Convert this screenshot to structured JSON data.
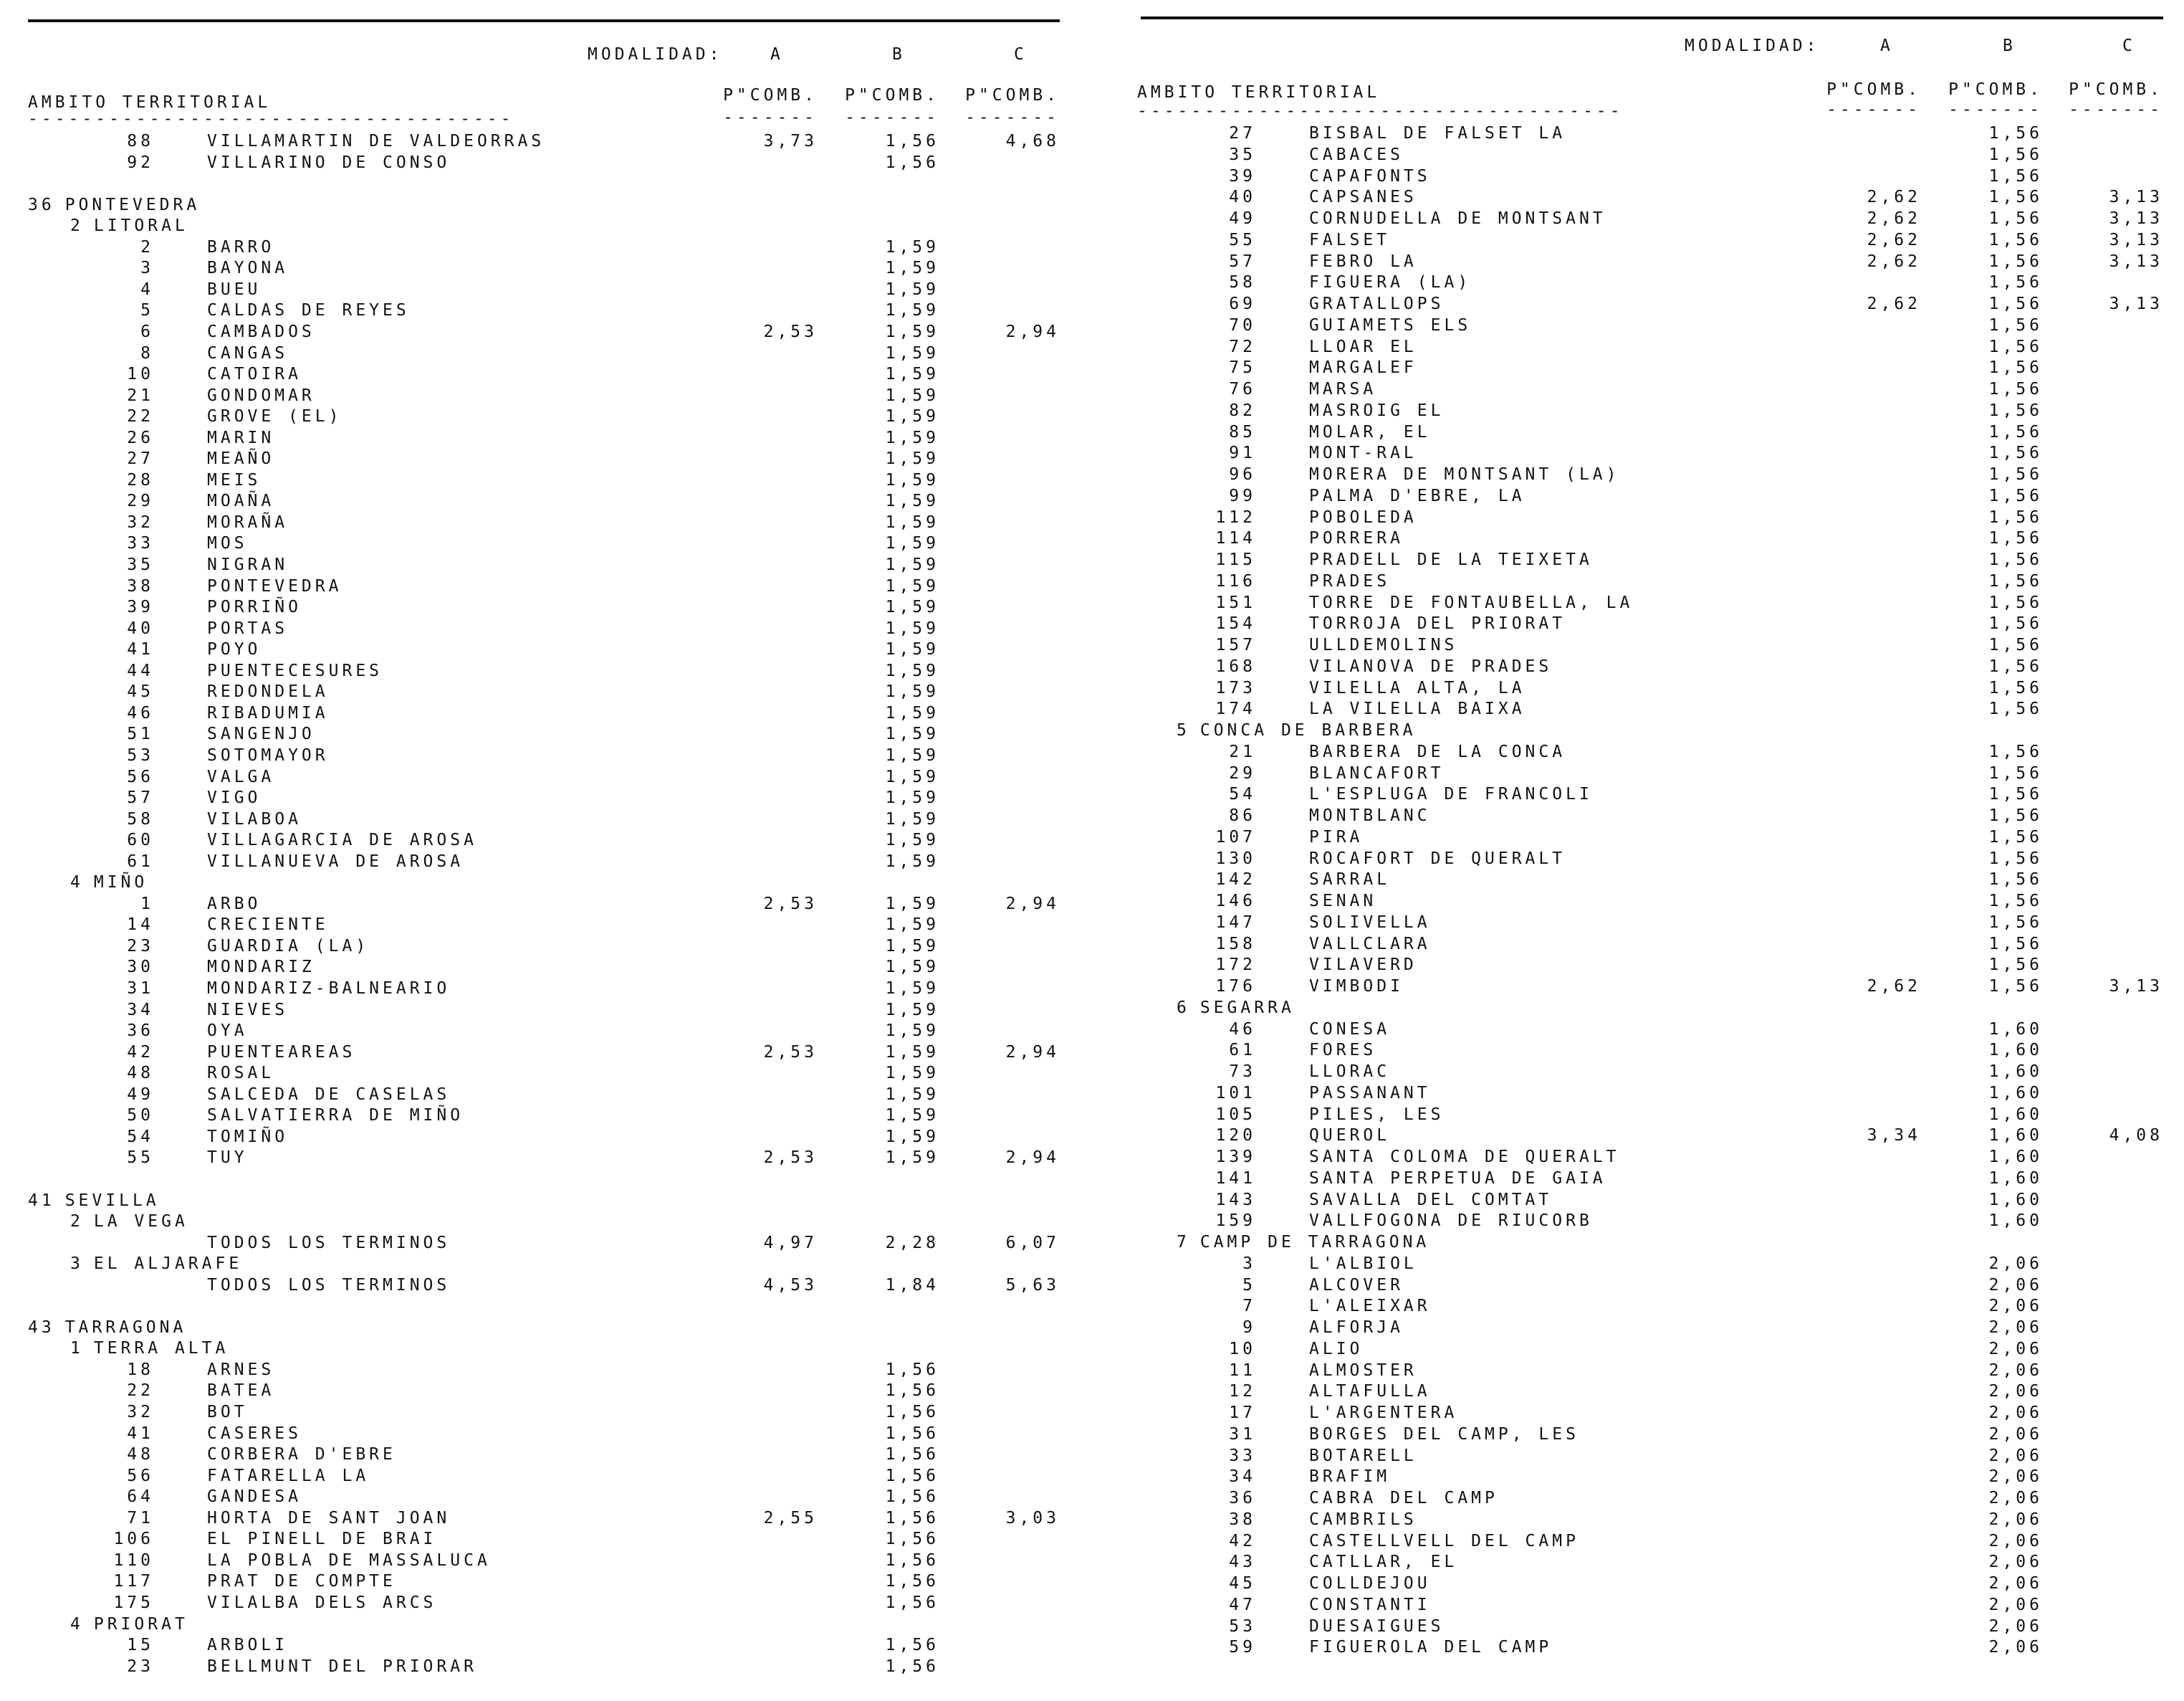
{
  "header": {
    "modalidad_label": "MODALIDAD:",
    "modalidades": [
      "A",
      "B",
      "C"
    ],
    "ambito_label": "AMBITO TERRITORIAL",
    "ambito_underline": "------------------------------------",
    "column_label": "P\"COMB.",
    "column_underline": "-------"
  },
  "left_column": {
    "rows": [
      {
        "type": "item",
        "num": "88",
        "name": "VILLAMARTIN DE VALDEORRAS",
        "a": "3,73",
        "b": "1,56",
        "c": "4,68"
      },
      {
        "type": "item",
        "num": "92",
        "name": "VILLARINO DE CONSO",
        "b": "1,56"
      },
      {
        "type": "blank"
      },
      {
        "type": "province",
        "code": "36",
        "name": "PONTEVEDRA"
      },
      {
        "type": "region",
        "code": "2",
        "name": "LITORAL"
      },
      {
        "type": "item",
        "num": "2",
        "name": "BARRO",
        "b": "1,59"
      },
      {
        "type": "item",
        "num": "3",
        "name": "BAYONA",
        "b": "1,59"
      },
      {
        "type": "item",
        "num": "4",
        "name": "BUEU",
        "b": "1,59"
      },
      {
        "type": "item",
        "num": "5",
        "name": "CALDAS DE REYES",
        "b": "1,59"
      },
      {
        "type": "item",
        "num": "6",
        "name": "CAMBADOS",
        "a": "2,53",
        "b": "1,59",
        "c": "2,94"
      },
      {
        "type": "item",
        "num": "8",
        "name": "CANGAS",
        "b": "1,59"
      },
      {
        "type": "item",
        "num": "10",
        "name": "CATOIRA",
        "b": "1,59"
      },
      {
        "type": "item",
        "num": "21",
        "name": "GONDOMAR",
        "b": "1,59"
      },
      {
        "type": "item",
        "num": "22",
        "name": "GROVE (EL)",
        "b": "1,59"
      },
      {
        "type": "item",
        "num": "26",
        "name": "MARIN",
        "b": "1,59"
      },
      {
        "type": "item",
        "num": "27",
        "name": "MEAÑO",
        "b": "1,59"
      },
      {
        "type": "item",
        "num": "28",
        "name": "MEIS",
        "b": "1,59"
      },
      {
        "type": "item",
        "num": "29",
        "name": "MOAÑA",
        "b": "1,59"
      },
      {
        "type": "item",
        "num": "32",
        "name": "MORAÑA",
        "b": "1,59"
      },
      {
        "type": "item",
        "num": "33",
        "name": "MOS",
        "b": "1,59"
      },
      {
        "type": "item",
        "num": "35",
        "name": "NIGRAN",
        "b": "1,59"
      },
      {
        "type": "item",
        "num": "38",
        "name": "PONTEVEDRA",
        "b": "1,59"
      },
      {
        "type": "item",
        "num": "39",
        "name": "PORRIÑO",
        "b": "1,59"
      },
      {
        "type": "item",
        "num": "40",
        "name": "PORTAS",
        "b": "1,59"
      },
      {
        "type": "item",
        "num": "41",
        "name": "POYO",
        "b": "1,59"
      },
      {
        "type": "item",
        "num": "44",
        "name": "PUENTECESURES",
        "b": "1,59"
      },
      {
        "type": "item",
        "num": "45",
        "name": "REDONDELA",
        "b": "1,59"
      },
      {
        "type": "item",
        "num": "46",
        "name": "RIBADUMIA",
        "b": "1,59"
      },
      {
        "type": "item",
        "num": "51",
        "name": "SANGENJO",
        "b": "1,59"
      },
      {
        "type": "item",
        "num": "53",
        "name": "SOTOMAYOR",
        "b": "1,59"
      },
      {
        "type": "item",
        "num": "56",
        "name": "VALGA",
        "b": "1,59"
      },
      {
        "type": "item",
        "num": "57",
        "name": "VIGO",
        "b": "1,59"
      },
      {
        "type": "item",
        "num": "58",
        "name": "VILABOA",
        "b": "1,59"
      },
      {
        "type": "item",
        "num": "60",
        "name": "VILLAGARCIA DE AROSA",
        "b": "1,59"
      },
      {
        "type": "item",
        "num": "61",
        "name": "VILLANUEVA DE AROSA",
        "b": "1,59"
      },
      {
        "type": "region",
        "code": "4",
        "name": "MIÑO"
      },
      {
        "type": "item",
        "num": "1",
        "name": "ARBO",
        "a": "2,53",
        "b": "1,59",
        "c": "2,94"
      },
      {
        "type": "item",
        "num": "14",
        "name": "CRECIENTE",
        "b": "1,59"
      },
      {
        "type": "item",
        "num": "23",
        "name": "GUARDIA (LA)",
        "b": "1,59"
      },
      {
        "type": "item",
        "num": "30",
        "name": "MONDARIZ",
        "b": "1,59"
      },
      {
        "type": "item",
        "num": "31",
        "name": "MONDARIZ-BALNEARIO",
        "b": "1,59"
      },
      {
        "type": "item",
        "num": "34",
        "name": "NIEVES",
        "b": "1,59"
      },
      {
        "type": "item",
        "num": "36",
        "name": "OYA",
        "b": "1,59"
      },
      {
        "type": "item",
        "num": "42",
        "name": "PUENTEAREAS",
        "a": "2,53",
        "b": "1,59",
        "c": "2,94"
      },
      {
        "type": "item",
        "num": "48",
        "name": "ROSAL",
        "b": "1,59"
      },
      {
        "type": "item",
        "num": "49",
        "name": "SALCEDA DE CASELAS",
        "b": "1,59"
      },
      {
        "type": "item",
        "num": "50",
        "name": "SALVATIERRA DE MIÑO",
        "b": "1,59"
      },
      {
        "type": "item",
        "num": "54",
        "name": "TOMIÑO",
        "b": "1,59"
      },
      {
        "type": "item",
        "num": "55",
        "name": "TUY",
        "a": "2,53",
        "b": "1,59",
        "c": "2,94"
      },
      {
        "type": "blank"
      },
      {
        "type": "province",
        "code": "41",
        "name": "SEVILLA"
      },
      {
        "type": "region",
        "code": "2",
        "name": "LA VEGA"
      },
      {
        "type": "item",
        "num": "",
        "name": "TODOS LOS TERMINOS",
        "a": "4,97",
        "b": "2,28",
        "c": "6,07"
      },
      {
        "type": "region",
        "code": "3",
        "name": "EL ALJARAFE"
      },
      {
        "type": "item",
        "num": "",
        "name": "TODOS LOS TERMINOS",
        "a": "4,53",
        "b": "1,84",
        "c": "5,63"
      },
      {
        "type": "blank"
      },
      {
        "type": "province",
        "code": "43",
        "name": "TARRAGONA"
      },
      {
        "type": "region",
        "code": "1",
        "name": "TERRA ALTA"
      },
      {
        "type": "item",
        "num": "18",
        "name": "ARNES",
        "b": "1,56"
      },
      {
        "type": "item",
        "num": "22",
        "name": "BATEA",
        "b": "1,56"
      },
      {
        "type": "item",
        "num": "32",
        "name": "BOT",
        "b": "1,56"
      },
      {
        "type": "item",
        "num": "41",
        "name": "CASERES",
        "b": "1,56"
      },
      {
        "type": "item",
        "num": "48",
        "name": "CORBERA D'EBRE",
        "b": "1,56"
      },
      {
        "type": "item",
        "num": "56",
        "name": "FATARELLA LA",
        "b": "1,56"
      },
      {
        "type": "item",
        "num": "64",
        "name": "GANDESA",
        "b": "1,56"
      },
      {
        "type": "item",
        "num": "71",
        "name": "HORTA DE SANT JOAN",
        "a": "2,55",
        "b": "1,56",
        "c": "3,03"
      },
      {
        "type": "item",
        "num": "106",
        "name": "EL PINELL DE BRAI",
        "b": "1,56"
      },
      {
        "type": "item",
        "num": "110",
        "name": "LA POBLA DE MASSALUCA",
        "b": "1,56"
      },
      {
        "type": "item",
        "num": "117",
        "name": "PRAT DE COMPTE",
        "b": "1,56"
      },
      {
        "type": "item",
        "num": "175",
        "name": "VILALBA DELS ARCS",
        "b": "1,56"
      },
      {
        "type": "region",
        "code": "4",
        "name": "PRIORAT"
      },
      {
        "type": "item",
        "num": "15",
        "name": "ARBOLI",
        "b": "1,56"
      },
      {
        "type": "item",
        "num": "23",
        "name": "BELLMUNT DEL PRIORAR",
        "b": "1,56"
      }
    ]
  },
  "right_column": {
    "rows": [
      {
        "type": "item",
        "num": "27",
        "name": "BISBAL DE FALSET LA",
        "b": "1,56"
      },
      {
        "type": "item",
        "num": "35",
        "name": "CABACES",
        "b": "1,56"
      },
      {
        "type": "item",
        "num": "39",
        "name": "CAPAFONTS",
        "b": "1,56"
      },
      {
        "type": "item",
        "num": "40",
        "name": "CAPSANES",
        "a": "2,62",
        "b": "1,56",
        "c": "3,13"
      },
      {
        "type": "item",
        "num": "49",
        "name": "CORNUDELLA DE MONTSANT",
        "a": "2,62",
        "b": "1,56",
        "c": "3,13"
      },
      {
        "type": "item",
        "num": "55",
        "name": "FALSET",
        "a": "2,62",
        "b": "1,56",
        "c": "3,13"
      },
      {
        "type": "item",
        "num": "57",
        "name": "FEBRO LA",
        "a": "2,62",
        "b": "1,56",
        "c": "3,13"
      },
      {
        "type": "item",
        "num": "58",
        "name": "FIGUERA (LA)",
        "b": "1,56"
      },
      {
        "type": "item",
        "num": "69",
        "name": "GRATALLOPS",
        "a": "2,62",
        "b": "1,56",
        "c": "3,13"
      },
      {
        "type": "item",
        "num": "70",
        "name": "GUIAMETS ELS",
        "b": "1,56"
      },
      {
        "type": "item",
        "num": "72",
        "name": "LLOAR EL",
        "b": "1,56"
      },
      {
        "type": "item",
        "num": "75",
        "name": "MARGALEF",
        "b": "1,56"
      },
      {
        "type": "item",
        "num": "76",
        "name": "MARSA",
        "b": "1,56"
      },
      {
        "type": "item",
        "num": "82",
        "name": "MASROIG EL",
        "b": "1,56"
      },
      {
        "type": "item",
        "num": "85",
        "name": "MOLAR, EL",
        "b": "1,56"
      },
      {
        "type": "item",
        "num": "91",
        "name": "MONT-RAL",
        "b": "1,56"
      },
      {
        "type": "item",
        "num": "96",
        "name": "MORERA DE MONTSANT (LA)",
        "b": "1,56"
      },
      {
        "type": "item",
        "num": "99",
        "name": "PALMA D'EBRE, LA",
        "b": "1,56"
      },
      {
        "type": "item",
        "num": "112",
        "name": "POBOLEDA",
        "b": "1,56"
      },
      {
        "type": "item",
        "num": "114",
        "name": "PORRERA",
        "b": "1,56"
      },
      {
        "type": "item",
        "num": "115",
        "name": "PRADELL DE LA TEIXETA",
        "b": "1,56"
      },
      {
        "type": "item",
        "num": "116",
        "name": "PRADES",
        "b": "1,56"
      },
      {
        "type": "item",
        "num": "151",
        "name": "TORRE DE FONTAUBELLA, LA",
        "b": "1,56"
      },
      {
        "type": "item",
        "num": "154",
        "name": "TORROJA DEL PRIORAT",
        "b": "1,56"
      },
      {
        "type": "item",
        "num": "157",
        "name": "ULLDEMOLINS",
        "b": "1,56"
      },
      {
        "type": "item",
        "num": "168",
        "name": "VILANOVA DE PRADES",
        "b": "1,56"
      },
      {
        "type": "item",
        "num": "173",
        "name": "VILELLA ALTA, LA",
        "b": "1,56"
      },
      {
        "type": "item",
        "num": "174",
        "name": "LA VILELLA BAIXA",
        "b": "1,56"
      },
      {
        "type": "region",
        "code": "5",
        "name": "CONCA DE BARBERA"
      },
      {
        "type": "item",
        "num": "21",
        "name": "BARBERA DE LA CONCA",
        "b": "1,56"
      },
      {
        "type": "item",
        "num": "29",
        "name": "BLANCAFORT",
        "b": "1,56"
      },
      {
        "type": "item",
        "num": "54",
        "name": "L'ESPLUGA DE FRANCOLI",
        "b": "1,56"
      },
      {
        "type": "item",
        "num": "86",
        "name": "MONTBLANC",
        "b": "1,56"
      },
      {
        "type": "item",
        "num": "107",
        "name": "PIRA",
        "b": "1,56"
      },
      {
        "type": "item",
        "num": "130",
        "name": "ROCAFORT DE QUERALT",
        "b": "1,56"
      },
      {
        "type": "item",
        "num": "142",
        "name": "SARRAL",
        "b": "1,56"
      },
      {
        "type": "item",
        "num": "146",
        "name": "SENAN",
        "b": "1,56"
      },
      {
        "type": "item",
        "num": "147",
        "name": "SOLIVELLA",
        "b": "1,56"
      },
      {
        "type": "item",
        "num": "158",
        "name": "VALLCLARA",
        "b": "1,56"
      },
      {
        "type": "item",
        "num": "172",
        "name": "VILAVERD",
        "b": "1,56"
      },
      {
        "type": "item",
        "num": "176",
        "name": "VIMBODI",
        "a": "2,62",
        "b": "1,56",
        "c": "3,13"
      },
      {
        "type": "region",
        "code": "6",
        "name": "SEGARRA"
      },
      {
        "type": "item",
        "num": "46",
        "name": "CONESA",
        "b": "1,60"
      },
      {
        "type": "item",
        "num": "61",
        "name": "FORES",
        "b": "1,60"
      },
      {
        "type": "item",
        "num": "73",
        "name": "LLORAC",
        "b": "1,60"
      },
      {
        "type": "item",
        "num": "101",
        "name": "PASSANANT",
        "b": "1,60"
      },
      {
        "type": "item",
        "num": "105",
        "name": "PILES, LES",
        "b": "1,60"
      },
      {
        "type": "item",
        "num": "120",
        "name": "QUEROL",
        "a": "3,34",
        "b": "1,60",
        "c": "4,08"
      },
      {
        "type": "item",
        "num": "139",
        "name": "SANTA COLOMA DE QUERALT",
        "b": "1,60"
      },
      {
        "type": "item",
        "num": "141",
        "name": "SANTA PERPETUA DE GAIA",
        "b": "1,60"
      },
      {
        "type": "item",
        "num": "143",
        "name": "SAVALLA DEL COMTAT",
        "b": "1,60"
      },
      {
        "type": "item",
        "num": "159",
        "name": "VALLFOGONA DE RIUCORB",
        "b": "1,60"
      },
      {
        "type": "region",
        "code": "7",
        "name": "CAMP DE TARRAGONA"
      },
      {
        "type": "item",
        "num": "3",
        "name": "L'ALBIOL",
        "b": "2,06"
      },
      {
        "type": "item",
        "num": "5",
        "name": "ALCOVER",
        "b": "2,06"
      },
      {
        "type": "item",
        "num": "7",
        "name": "L'ALEIXAR",
        "b": "2,06"
      },
      {
        "type": "item",
        "num": "9",
        "name": "ALFORJA",
        "b": "2,06"
      },
      {
        "type": "item",
        "num": "10",
        "name": "ALIO",
        "b": "2,06"
      },
      {
        "type": "item",
        "num": "11",
        "name": "ALMOSTER",
        "b": "2,06"
      },
      {
        "type": "item",
        "num": "12",
        "name": "ALTAFULLA",
        "b": "2,06"
      },
      {
        "type": "item",
        "num": "17",
        "name": "L'ARGENTERA",
        "b": "2,06"
      },
      {
        "type": "item",
        "num": "31",
        "name": "BORGES DEL CAMP, LES",
        "b": "2,06"
      },
      {
        "type": "item",
        "num": "33",
        "name": "BOTARELL",
        "b": "2,06"
      },
      {
        "type": "item",
        "num": "34",
        "name": "BRAFIM",
        "b": "2,06"
      },
      {
        "type": "item",
        "num": "36",
        "name": "CABRA DEL CAMP",
        "b": "2,06"
      },
      {
        "type": "item",
        "num": "38",
        "name": "CAMBRILS",
        "b": "2,06"
      },
      {
        "type": "item",
        "num": "42",
        "name": "CASTELLVELL DEL CAMP",
        "b": "2,06"
      },
      {
        "type": "item",
        "num": "43",
        "name": "CATLLAR, EL",
        "b": "2,06"
      },
      {
        "type": "item",
        "num": "45",
        "name": "COLLDEJOU",
        "b": "2,06"
      },
      {
        "type": "item",
        "num": "47",
        "name": "CONSTANTI",
        "b": "2,06"
      },
      {
        "type": "item",
        "num": "53",
        "name": "DUESAIGUES",
        "b": "2,06"
      },
      {
        "type": "item",
        "num": "59",
        "name": "FIGUEROLA DEL CAMP",
        "b": "2,06"
      }
    ]
  }
}
